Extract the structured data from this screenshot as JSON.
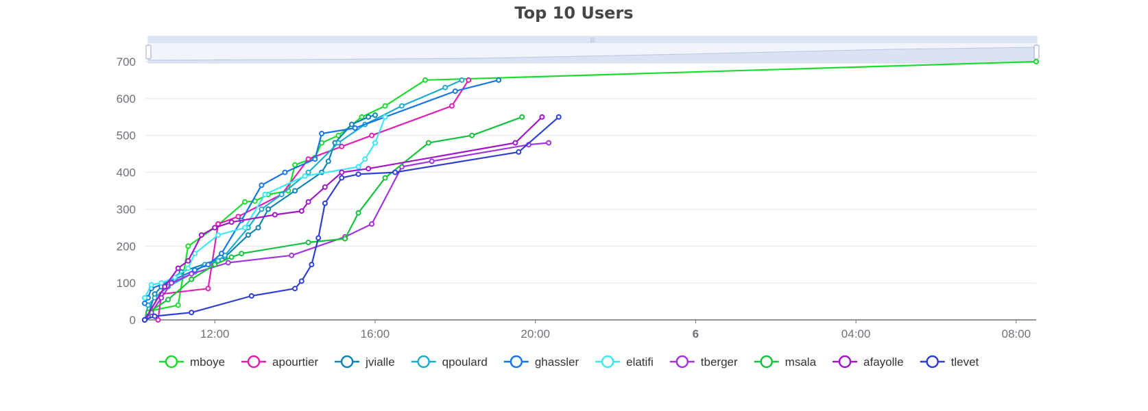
{
  "chart_data": {
    "type": "line",
    "title": "Top 10 Users",
    "xlabel": "",
    "ylabel": "",
    "xlim": [
      "10:15",
      "32:30"
    ],
    "ylim": [
      0,
      700
    ],
    "yticks": [
      0,
      100,
      200,
      300,
      400,
      500,
      600,
      700
    ],
    "xticks": [
      {
        "label": "12:00",
        "t": "12:00",
        "bold": false
      },
      {
        "label": "16:00",
        "t": "16:00",
        "bold": false
      },
      {
        "label": "20:00",
        "t": "20:00",
        "bold": false
      },
      {
        "label": "6",
        "t": "24:00",
        "bold": true
      },
      {
        "label": "04:00",
        "t": "28:00",
        "bold": false
      },
      {
        "label": "08:00",
        "t": "32:00",
        "bold": false
      }
    ],
    "grid": true,
    "legend_position": "bottom",
    "data_zoom_slider": true,
    "series": [
      {
        "name": "mboye",
        "color": "#1adc2e",
        "points": [
          [
            "10:15",
            0
          ],
          [
            "10:20",
            20
          ],
          [
            "10:25",
            25
          ],
          [
            "11:05",
            40
          ],
          [
            "11:20",
            200
          ],
          [
            "12:00",
            250
          ],
          [
            "12:45",
            320
          ],
          [
            "13:00",
            322
          ],
          [
            "13:20",
            340
          ],
          [
            "13:50",
            350
          ],
          [
            "14:00",
            420
          ],
          [
            "14:30",
            440
          ],
          [
            "14:40",
            480
          ],
          [
            "15:05",
            500
          ],
          [
            "15:40",
            550
          ],
          [
            "16:15",
            580
          ],
          [
            "17:15",
            650
          ],
          [
            "32:30",
            700
          ]
        ]
      },
      {
        "name": "apourtier",
        "color": "#e01eb0",
        "points": [
          [
            "10:35",
            0
          ],
          [
            "10:40",
            70
          ],
          [
            "11:50",
            85
          ],
          [
            "12:05",
            260
          ],
          [
            "12:35",
            280
          ],
          [
            "13:40",
            340
          ],
          [
            "14:20",
            436
          ],
          [
            "15:10",
            470
          ],
          [
            "15:55",
            500
          ],
          [
            "17:55",
            580
          ],
          [
            "18:20",
            650
          ]
        ]
      },
      {
        "name": "jvialle",
        "color": "#0f82b4",
        "points": [
          [
            "10:15",
            0
          ],
          [
            "10:20",
            10
          ],
          [
            "10:30",
            70
          ],
          [
            "10:40",
            90
          ],
          [
            "11:10",
            130
          ],
          [
            "12:15",
            170
          ],
          [
            "12:50",
            230
          ],
          [
            "13:05",
            250
          ],
          [
            "13:20",
            300
          ],
          [
            "14:00",
            350
          ],
          [
            "14:40",
            400
          ],
          [
            "14:50",
            430
          ],
          [
            "15:00",
            480
          ],
          [
            "15:25",
            530
          ],
          [
            "15:50",
            550
          ],
          [
            "16:00",
            555
          ]
        ]
      },
      {
        "name": "qpoulard",
        "color": "#1aaccc",
        "points": [
          [
            "10:15",
            0
          ],
          [
            "10:20",
            40
          ],
          [
            "10:30",
            60
          ],
          [
            "10:50",
            90
          ],
          [
            "11:30",
            130
          ],
          [
            "11:45",
            150
          ],
          [
            "12:05",
            160
          ],
          [
            "12:15",
            175
          ],
          [
            "12:50",
            250
          ],
          [
            "13:10",
            300
          ],
          [
            "13:40",
            340
          ],
          [
            "14:20",
            400
          ],
          [
            "15:05",
            480
          ],
          [
            "15:45",
            530
          ],
          [
            "16:40",
            580
          ],
          [
            "17:45",
            630
          ],
          [
            "18:10",
            650
          ]
        ]
      },
      {
        "name": "ghassler",
        "color": "#1577e6",
        "points": [
          [
            "10:15",
            45
          ],
          [
            "10:20",
            60
          ],
          [
            "10:25",
            85
          ],
          [
            "11:00",
            110
          ],
          [
            "11:30",
            135
          ],
          [
            "11:50",
            150
          ],
          [
            "12:10",
            180
          ],
          [
            "12:40",
            270
          ],
          [
            "13:10",
            365
          ],
          [
            "13:45",
            400
          ],
          [
            "14:30",
            436
          ],
          [
            "14:40",
            505
          ],
          [
            "15:30",
            520
          ],
          [
            "16:15",
            550
          ],
          [
            "18:00",
            620
          ],
          [
            "19:05",
            650
          ]
        ]
      },
      {
        "name": "elatifi",
        "color": "#3de8f0",
        "points": [
          [
            "10:15",
            60
          ],
          [
            "10:25",
            95
          ],
          [
            "10:40",
            100
          ],
          [
            "11:00",
            115
          ],
          [
            "11:20",
            140
          ],
          [
            "11:30",
            180
          ],
          [
            "12:05",
            230
          ],
          [
            "12:45",
            250
          ],
          [
            "13:15",
            340
          ],
          [
            "14:15",
            390
          ],
          [
            "15:35",
            415
          ],
          [
            "15:45",
            436
          ],
          [
            "16:00",
            480
          ],
          [
            "16:15",
            550
          ]
        ]
      },
      {
        "name": "tberger",
        "color": "#a033e0",
        "points": [
          [
            "10:15",
            0
          ],
          [
            "10:25",
            20
          ],
          [
            "10:40",
            60
          ],
          [
            "10:55",
            100
          ],
          [
            "11:25",
            125
          ],
          [
            "12:20",
            155
          ],
          [
            "13:55",
            175
          ],
          [
            "15:15",
            225
          ],
          [
            "15:55",
            260
          ],
          [
            "16:40",
            415
          ],
          [
            "17:25",
            430
          ],
          [
            "19:50",
            475
          ],
          [
            "20:20",
            480
          ]
        ]
      },
      {
        "name": "msala",
        "color": "#12c23c",
        "points": [
          [
            "10:15",
            0
          ],
          [
            "10:20",
            20
          ],
          [
            "10:50",
            55
          ],
          [
            "11:25",
            110
          ],
          [
            "12:00",
            150
          ],
          [
            "12:25",
            170
          ],
          [
            "12:40",
            180
          ],
          [
            "14:20",
            210
          ],
          [
            "15:15",
            220
          ],
          [
            "15:35",
            290
          ],
          [
            "16:15",
            385
          ],
          [
            "17:20",
            480
          ],
          [
            "18:25",
            500
          ],
          [
            "19:40",
            550
          ]
        ]
      },
      {
        "name": "afayolle",
        "color": "#a114c8",
        "points": [
          [
            "10:15",
            0
          ],
          [
            "10:45",
            90
          ],
          [
            "11:05",
            140
          ],
          [
            "11:20",
            160
          ],
          [
            "11:40",
            230
          ],
          [
            "12:00",
            250
          ],
          [
            "12:25",
            265
          ],
          [
            "13:30",
            285
          ],
          [
            "14:10",
            295
          ],
          [
            "14:20",
            320
          ],
          [
            "14:45",
            360
          ],
          [
            "15:10",
            400
          ],
          [
            "15:50",
            410
          ],
          [
            "19:30",
            480
          ],
          [
            "20:10",
            550
          ]
        ]
      },
      {
        "name": "tlevet",
        "color": "#2e3fd4",
        "points": [
          [
            "10:15",
            0
          ],
          [
            "10:30",
            10
          ],
          [
            "11:25",
            20
          ],
          [
            "12:55",
            65
          ],
          [
            "14:00",
            85
          ],
          [
            "14:10",
            105
          ],
          [
            "14:25",
            150
          ],
          [
            "14:35",
            222
          ],
          [
            "14:45",
            316
          ],
          [
            "15:10",
            385
          ],
          [
            "15:35",
            395
          ],
          [
            "16:30",
            400
          ],
          [
            "19:35",
            455
          ],
          [
            "20:35",
            550
          ]
        ]
      }
    ]
  }
}
